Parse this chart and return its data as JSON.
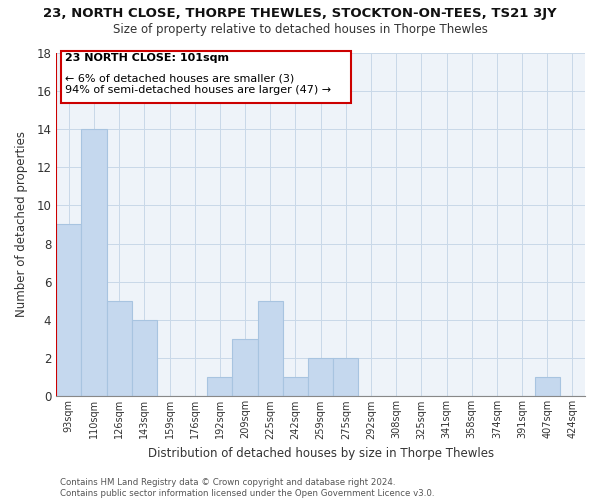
{
  "title": "23, NORTH CLOSE, THORPE THEWLES, STOCKTON-ON-TEES, TS21 3JY",
  "subtitle": "Size of property relative to detached houses in Thorpe Thewles",
  "xlabel": "Distribution of detached houses by size in Thorpe Thewles",
  "ylabel": "Number of detached properties",
  "categories": [
    "93sqm",
    "110sqm",
    "126sqm",
    "143sqm",
    "159sqm",
    "176sqm",
    "192sqm",
    "209sqm",
    "225sqm",
    "242sqm",
    "259sqm",
    "275sqm",
    "292sqm",
    "308sqm",
    "325sqm",
    "341sqm",
    "358sqm",
    "374sqm",
    "391sqm",
    "407sqm",
    "424sqm"
  ],
  "values": [
    9,
    14,
    5,
    4,
    0,
    0,
    1,
    3,
    5,
    1,
    2,
    2,
    0,
    0,
    0,
    0,
    0,
    0,
    0,
    1,
    0
  ],
  "bar_color": "#c5d8ee",
  "bar_edge_color": "#a8c4e0",
  "marker_line_color": "#cc0000",
  "annotation_title": "23 NORTH CLOSE: 101sqm",
  "annotation_line1": "← 6% of detached houses are smaller (3)",
  "annotation_line2": "94% of semi-detached houses are larger (47) →",
  "annotation_box_color": "#ffffff",
  "annotation_box_edge": "#cc0000",
  "ylim": [
    0,
    18
  ],
  "yticks": [
    0,
    2,
    4,
    6,
    8,
    10,
    12,
    14,
    16,
    18
  ],
  "footer_line1": "Contains HM Land Registry data © Crown copyright and database right 2024.",
  "footer_line2": "Contains public sector information licensed under the Open Government Licence v3.0.",
  "background_color": "#ffffff",
  "grid_color": "#c8d8e8"
}
